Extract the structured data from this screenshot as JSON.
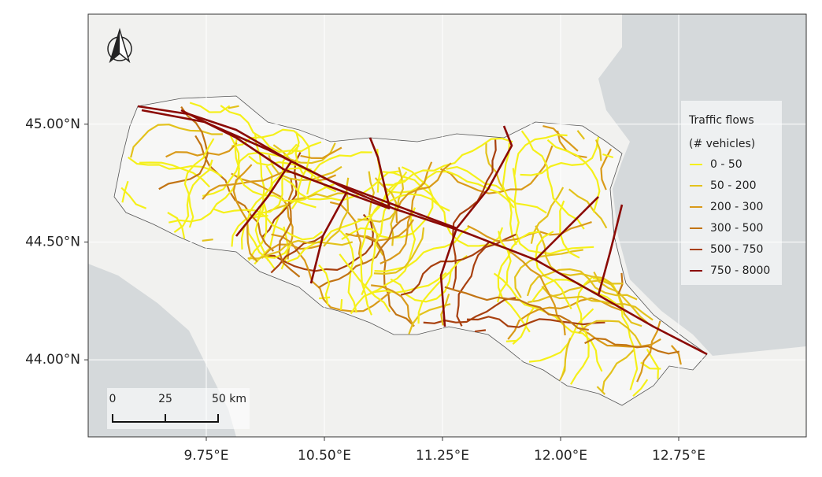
{
  "map": {
    "xlim": [
      9.0,
      13.56
    ],
    "ylim": [
      43.673,
      45.467
    ],
    "xticks": [
      {
        "value": 9.75,
        "label": "9.75°E"
      },
      {
        "value": 10.5,
        "label": "10.50°E"
      },
      {
        "value": 11.25,
        "label": "11.25°E"
      },
      {
        "value": 12.0,
        "label": "12.00°E"
      },
      {
        "value": 12.75,
        "label": "12.75°E"
      }
    ],
    "yticks": [
      {
        "value": 45.0,
        "label": "45.00°N"
      },
      {
        "value": 44.5,
        "label": "44.50°N"
      },
      {
        "value": 44.0,
        "label": "44.00°N"
      }
    ],
    "legend": {
      "title": [
        "Traffic flows",
        "(# vehicles)"
      ],
      "entries": [
        {
          "label": "0 - 50",
          "color": "#f5f019"
        },
        {
          "label": "50 - 200",
          "color": "#e3c21c"
        },
        {
          "label": "200 - 300",
          "color": "#d99a1a"
        },
        {
          "label": "300 - 500",
          "color": "#c27414"
        },
        {
          "label": "500 - 750",
          "color": "#a8400f"
        },
        {
          "label": "750 - 8000",
          "color": "#8b0a05"
        }
      ]
    },
    "scale_bar": {
      "labels": [
        "0",
        "25",
        "50 km"
      ]
    }
  }
}
